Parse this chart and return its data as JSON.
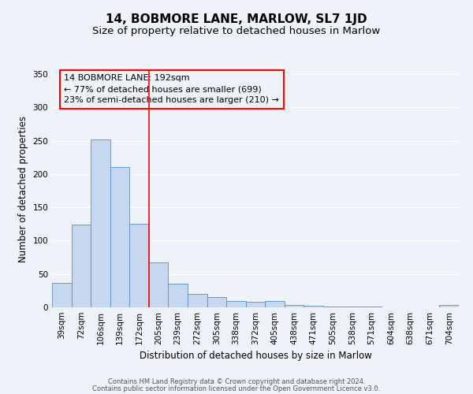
{
  "title": "14, BOBMORE LANE, MARLOW, SL7 1JD",
  "subtitle": "Size of property relative to detached houses in Marlow",
  "xlabel": "Distribution of detached houses by size in Marlow",
  "ylabel": "Number of detached properties",
  "bar_labels": [
    "39sqm",
    "72sqm",
    "106sqm",
    "139sqm",
    "172sqm",
    "205sqm",
    "239sqm",
    "272sqm",
    "305sqm",
    "338sqm",
    "372sqm",
    "405sqm",
    "438sqm",
    "471sqm",
    "505sqm",
    "538sqm",
    "571sqm",
    "604sqm",
    "638sqm",
    "671sqm",
    "704sqm"
  ],
  "bar_values": [
    37,
    124,
    252,
    211,
    125,
    68,
    35,
    20,
    15,
    10,
    8,
    10,
    4,
    2,
    1,
    1,
    1,
    0,
    0,
    0,
    3
  ],
  "bar_color": "#c5d8f0",
  "bar_edge_color": "#5a8fc2",
  "red_line_x": 4.5,
  "annotation_line1": "14 BOBMORE LANE: 192sqm",
  "annotation_line2": "← 77% of detached houses are smaller (699)",
  "annotation_line3": "23% of semi-detached houses are larger (210) →",
  "ylim": [
    0,
    355
  ],
  "yticks": [
    0,
    50,
    100,
    150,
    200,
    250,
    300,
    350
  ],
  "footer1": "Contains HM Land Registry data © Crown copyright and database right 2024.",
  "footer2": "Contains public sector information licensed under the Open Government Licence v3.0.",
  "background_color": "#eef2f9",
  "grid_color": "#ffffff",
  "title_fontsize": 11,
  "subtitle_fontsize": 9.5,
  "axis_label_fontsize": 8.5,
  "tick_fontsize": 7.5,
  "footer_fontsize": 6.0
}
